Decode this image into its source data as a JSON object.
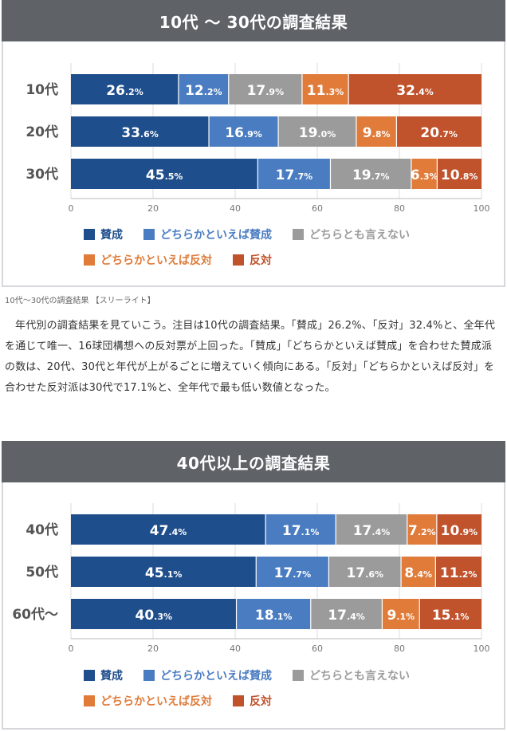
{
  "figure1": {
    "title": "10代 ～ 30代の調査結果",
    "caption": "10代〜30代の調査結果 【スリーライト】"
  },
  "figure2": {
    "title": "40代以上の調査結果"
  },
  "article": {
    "paragraph": "年代別の調査結果を見ていこう。注目は10代の調査結果。「賛成」26.2%、「反対」32.4%と、全年代を通じて唯一、16球団構想への反対票が上回った。「賛成」「どちらかといえば賛成」を合わせた賛成派の数は、20代、30代と年代が上がるごとに増えていく傾向にある。「反対」「どちらかといえば反対」を合わせた反対派は30代で17.1%と、全年代で最も低い数値となった。"
  },
  "legend": [
    {
      "label": "賛成",
      "color": "#1f4e8c"
    },
    {
      "label": "どちらかといえば賛成",
      "color": "#4a7cc1"
    },
    {
      "label": "どちらとも言えない",
      "color": "#9b9b9b"
    },
    {
      "label": "どちらかといえば反対",
      "color": "#e07b39"
    },
    {
      "label": "反対",
      "color": "#c0522c"
    }
  ],
  "chart_data": [
    {
      "type": "bar",
      "orientation": "horizontal-stacked",
      "title": "10代 ～ 30代の調査結果",
      "categories": [
        "10代",
        "20代",
        "30代"
      ],
      "xlim": [
        0,
        100
      ],
      "xticks": [
        0,
        20,
        40,
        60,
        80,
        100
      ],
      "series": [
        {
          "name": "賛成",
          "values": [
            26.2,
            33.6,
            45.5
          ]
        },
        {
          "name": "どちらかといえば賛成",
          "values": [
            12.2,
            16.9,
            17.7
          ]
        },
        {
          "name": "どちらとも言えない",
          "values": [
            17.9,
            19.0,
            19.7
          ]
        },
        {
          "name": "どちらかといえば反対",
          "values": [
            11.3,
            9.8,
            6.3
          ]
        },
        {
          "name": "反対",
          "values": [
            32.4,
            20.7,
            10.8
          ]
        }
      ]
    },
    {
      "type": "bar",
      "orientation": "horizontal-stacked",
      "title": "40代以上の調査結果",
      "categories": [
        "40代",
        "50代",
        "60代～"
      ],
      "xlim": [
        0,
        100
      ],
      "xticks": [
        0,
        20,
        40,
        60,
        80,
        100
      ],
      "series": [
        {
          "name": "賛成",
          "values": [
            47.4,
            45.1,
            40.3
          ]
        },
        {
          "name": "どちらかといえば賛成",
          "values": [
            17.1,
            17.7,
            18.1
          ]
        },
        {
          "name": "どちらとも言えない",
          "values": [
            17.4,
            17.6,
            17.4
          ]
        },
        {
          "name": "どちらかといえば反対",
          "values": [
            7.2,
            8.4,
            9.1
          ]
        },
        {
          "name": "反対",
          "values": [
            10.9,
            11.2,
            15.1
          ]
        }
      ]
    }
  ]
}
